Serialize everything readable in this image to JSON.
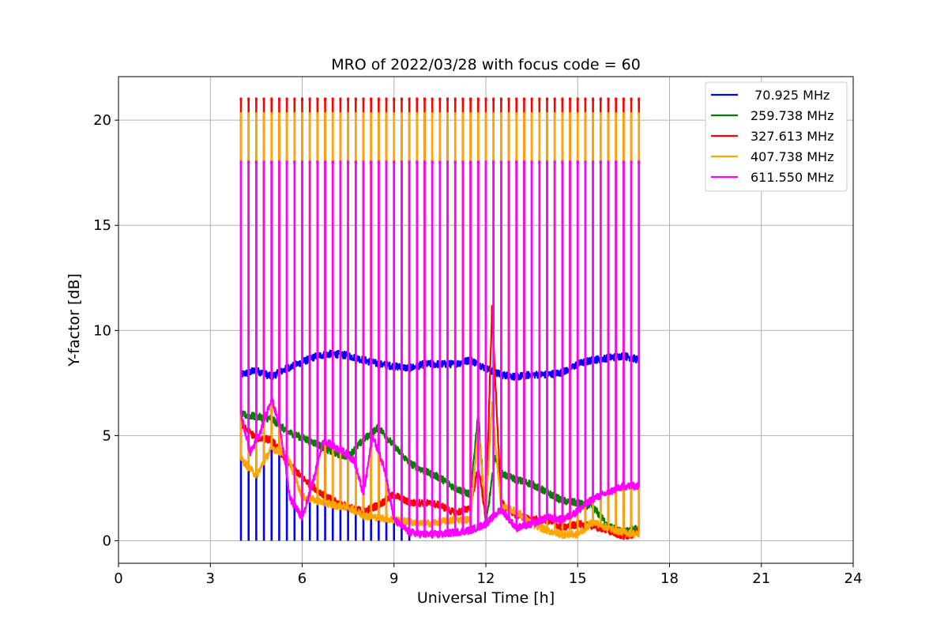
{
  "chart_data": {
    "type": "line",
    "title": "MRO of 2022/03/28 with focus code = 60",
    "xlabel": "Universal Time [h]",
    "ylabel": "Y-factor [dB]",
    "xlim": [
      0,
      24
    ],
    "ylim": [
      -1.07,
      22.07
    ],
    "xticks": [
      0,
      3,
      6,
      9,
      12,
      15,
      18,
      21,
      24
    ],
    "yticks": [
      0,
      5,
      10,
      15,
      20
    ],
    "grid": true,
    "legend_position": "top-right",
    "pulse_period_h": 0.25,
    "pulse_start_h": 4.0,
    "pulse_end_h": 17.0,
    "series": [
      {
        "name": " 70.925 MHz",
        "color": "#0000ff",
        "baseline": {
          "x": [
            4.0,
            4.5,
            5.0,
            5.5,
            6.0,
            6.5,
            7.0,
            7.5,
            8.0,
            8.5,
            9.0,
            9.5,
            10.0,
            10.5,
            11.0,
            11.5,
            12.0,
            12.5,
            13.0,
            13.5,
            14.0,
            14.5,
            15.0,
            15.5,
            16.0,
            16.5,
            17.0
          ],
          "y": [
            7.9,
            8.1,
            7.8,
            8.2,
            8.5,
            8.8,
            8.9,
            8.8,
            8.6,
            8.4,
            8.3,
            8.2,
            8.4,
            8.4,
            8.4,
            8.6,
            8.2,
            7.9,
            7.8,
            7.9,
            7.9,
            8.0,
            8.4,
            8.6,
            8.7,
            8.8,
            8.6
          ]
        },
        "pulse_value": 0.0,
        "pulse_until_h": 9.5,
        "spikes": [
          {
            "x": 11.5,
            "y": 9.8
          }
        ]
      },
      {
        "name": "259.738 MHz",
        "color": "#008000",
        "baseline": {
          "x": [
            4.0,
            4.5,
            5.0,
            5.5,
            6.0,
            6.5,
            7.0,
            7.5,
            8.0,
            8.5,
            9.0,
            9.5,
            10.0,
            10.5,
            11.0,
            11.5,
            11.75,
            12.0,
            12.3,
            12.5,
            13.0,
            13.5,
            14.0,
            14.5,
            15.0,
            15.5,
            16.0,
            16.5,
            17.0
          ],
          "y": [
            6.0,
            5.9,
            5.8,
            5.2,
            4.9,
            4.6,
            4.2,
            4.0,
            4.8,
            5.4,
            4.5,
            3.7,
            3.3,
            3.0,
            2.5,
            2.2,
            6.1,
            0.7,
            4.0,
            3.2,
            2.9,
            2.7,
            2.3,
            1.9,
            1.8,
            1.6,
            0.7,
            0.4,
            0.6
          ]
        },
        "pulse_value": 18.0,
        "pulse_until_h": 17.0,
        "spikes": []
      },
      {
        "name": "327.613 MHz",
        "color": "#ff0000",
        "baseline": {
          "x": [
            4.0,
            4.5,
            5.0,
            5.5,
            6.0,
            6.5,
            7.0,
            7.5,
            8.0,
            8.5,
            9.0,
            9.5,
            10.0,
            10.5,
            11.0,
            11.5,
            11.75,
            12.0,
            12.2,
            12.5,
            13.0,
            13.5,
            14.0,
            14.5,
            15.0,
            15.5,
            16.0,
            16.5,
            17.0
          ],
          "y": [
            5.5,
            4.9,
            4.8,
            3.8,
            3.0,
            2.4,
            1.9,
            1.6,
            1.4,
            1.7,
            2.2,
            1.8,
            1.8,
            1.7,
            1.3,
            1.6,
            3.5,
            1.1,
            11.0,
            1.8,
            1.2,
            1.0,
            1.0,
            0.6,
            0.8,
            0.7,
            0.5,
            0.2,
            0.4
          ]
        },
        "pulse_value": 21.0,
        "pulse_until_h": 17.0,
        "spikes": []
      },
      {
        "name": "407.738 MHz",
        "color": "#ffa500",
        "baseline": {
          "x": [
            4.0,
            4.5,
            5.0,
            5.5,
            6.0,
            6.5,
            7.0,
            7.5,
            8.0,
            8.5,
            9.0,
            9.5,
            10.0,
            10.5,
            11.0,
            11.5,
            11.75,
            12.0,
            12.2,
            12.5,
            13.0,
            13.5,
            14.0,
            14.5,
            15.0,
            15.5,
            16.0,
            16.5,
            17.0
          ],
          "y": [
            3.9,
            3.1,
            4.4,
            4.1,
            2.1,
            1.9,
            1.7,
            1.6,
            1.2,
            1.1,
            1.0,
            0.9,
            0.8,
            0.9,
            1.0,
            1.0,
            5.4,
            1.4,
            6.5,
            1.6,
            1.4,
            0.8,
            0.5,
            0.3,
            0.3,
            0.9,
            0.6,
            0.4,
            0.3
          ]
        },
        "pulse_value": 20.3,
        "pulse_until_h": 17.0,
        "spikes": []
      },
      {
        "name": "611.550 MHz",
        "color": "#ff00ff",
        "baseline": {
          "x": [
            4.0,
            4.3,
            4.6,
            5.0,
            5.3,
            5.6,
            6.0,
            6.3,
            6.7,
            7.0,
            7.4,
            7.7,
            8.0,
            8.3,
            8.7,
            9.0,
            9.5,
            10.0,
            10.5,
            11.0,
            11.5,
            12.0,
            12.5,
            13.0,
            13.5,
            14.0,
            14.5,
            15.0,
            15.5,
            16.0,
            16.5,
            17.0
          ],
          "y": [
            6.0,
            4.2,
            5.0,
            6.8,
            5.2,
            2.0,
            1.1,
            2.5,
            4.8,
            4.5,
            4.2,
            3.8,
            2.2,
            5.0,
            3.4,
            1.0,
            0.4,
            0.3,
            0.3,
            0.4,
            0.5,
            0.8,
            1.5,
            0.6,
            0.8,
            1.1,
            1.0,
            1.4,
            2.0,
            2.3,
            2.6,
            2.6
          ]
        },
        "pulse_value": 18.0,
        "pulse_until_h": 17.0,
        "spikes": [
          {
            "x": 4.0,
            "y": 10.8
          }
        ]
      }
    ]
  }
}
